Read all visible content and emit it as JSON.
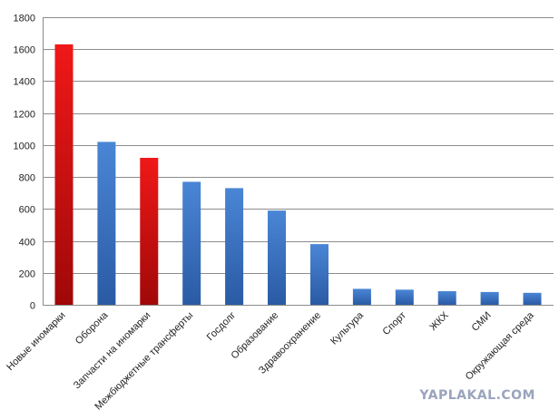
{
  "chart_data": {
    "type": "bar",
    "categories": [
      "Новые иномарки",
      "Оборона",
      "Запчасти на иномарки",
      "Межбюджетные трансферты",
      "Госдолг",
      "Образование",
      "Здравоохранение",
      "Культура",
      "Спорт",
      "ЖКХ",
      "СМИ",
      "Окружающая среда"
    ],
    "values": [
      1630,
      1020,
      920,
      770,
      730,
      590,
      380,
      100,
      95,
      85,
      80,
      75
    ],
    "highlighted": [
      true,
      false,
      true,
      false,
      false,
      false,
      false,
      false,
      false,
      false,
      false,
      false
    ],
    "ylim": [
      0,
      1800
    ],
    "yticks": [
      "0",
      "200",
      "400",
      "600",
      "800",
      "1000",
      "1200",
      "1400",
      "1600",
      "1800"
    ],
    "grid": true,
    "legend": "none",
    "colors": {
      "bar": "#3a6fbd",
      "highlight": "#dd1111",
      "grid": "#8c8c8c"
    }
  },
  "watermark": "YAPLAKAL.COM"
}
